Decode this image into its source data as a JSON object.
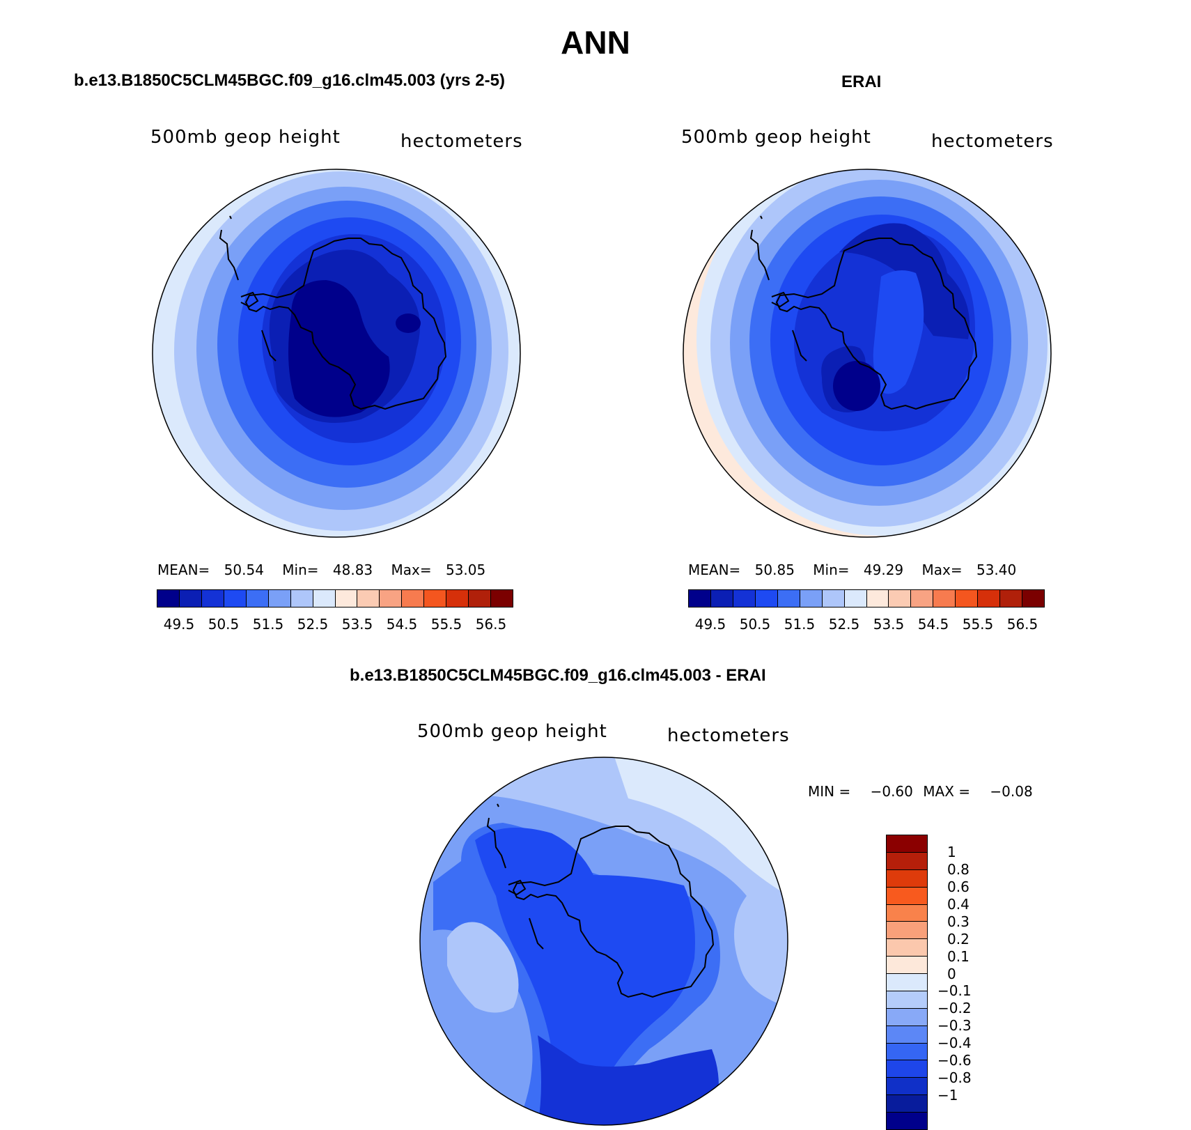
{
  "title": "ANN",
  "panels": [
    {
      "case_title": "b.e13.B1850C5CLM45BGC.f09_g16.clm45.003 (yrs 2-5)",
      "var_label": "500mb geop height",
      "unit_label": "hectometers",
      "mean_label": "MEAN=",
      "mean": "50.54",
      "min_label": "Min=",
      "min": "48.83",
      "max_label": "Max=",
      "max": "53.05"
    },
    {
      "case_title": "ERAI",
      "var_label": "500mb geop height",
      "unit_label": "hectometers",
      "mean_label": "MEAN=",
      "mean": "50.85",
      "min_label": "Min=",
      "min": "49.29",
      "max_label": "Max=",
      "max": "53.40"
    }
  ],
  "abs_colorbar": {
    "colors": [
      "#00008b",
      "#0b1fb4",
      "#1432d6",
      "#1e4af2",
      "#3c6ef5",
      "#7aa0f7",
      "#aec6fa",
      "#dbe9fc",
      "#fde9dc",
      "#fbcbb3",
      "#f8a383",
      "#f77b4f",
      "#f4561f",
      "#d6300a",
      "#b0200a",
      "#7b0000"
    ],
    "ticks": [
      "49.5",
      "50.5",
      "51.5",
      "52.5",
      "53.5",
      "54.5",
      "55.5",
      "56.5"
    ]
  },
  "diff": {
    "case_title": "b.e13.B1850C5CLM45BGC.f09_g16.clm45.003 - ERAI",
    "var_label": "500mb geop height",
    "unit_label": "hectometers",
    "min_label": "MIN =",
    "min": "−0.60",
    "max_label": "MAX =",
    "max": "−0.08",
    "colorbar": {
      "colors": [
        "#8b0000",
        "#b51f0a",
        "#de3b0b",
        "#f85a1e",
        "#f9824b",
        "#f9a07a",
        "#fbc8ad",
        "#fde8da",
        "#dbe9fc",
        "#b4ccfa",
        "#88a9f7",
        "#5c87f6",
        "#3566f4",
        "#1e46ea",
        "#1030c8",
        "#081c9c",
        "#00008b"
      ],
      "ticks": [
        "1",
        "0.8",
        "0.6",
        "0.4",
        "0.3",
        "0.2",
        "0.1",
        "0",
        "−0.1",
        "−0.2",
        "−0.3",
        "−0.4",
        "−0.6",
        "−0.8",
        "−1"
      ]
    }
  },
  "map_colors": {
    "c1": "#dbe9fc",
    "c2": "#aec6fa",
    "c3": "#7aa0f7",
    "c4": "#3c6ef5",
    "c5": "#1e4af2",
    "c6": "#1432d6",
    "c7": "#0b1fb4",
    "c8": "#00008b",
    "c_pos": "#fde9dc"
  }
}
